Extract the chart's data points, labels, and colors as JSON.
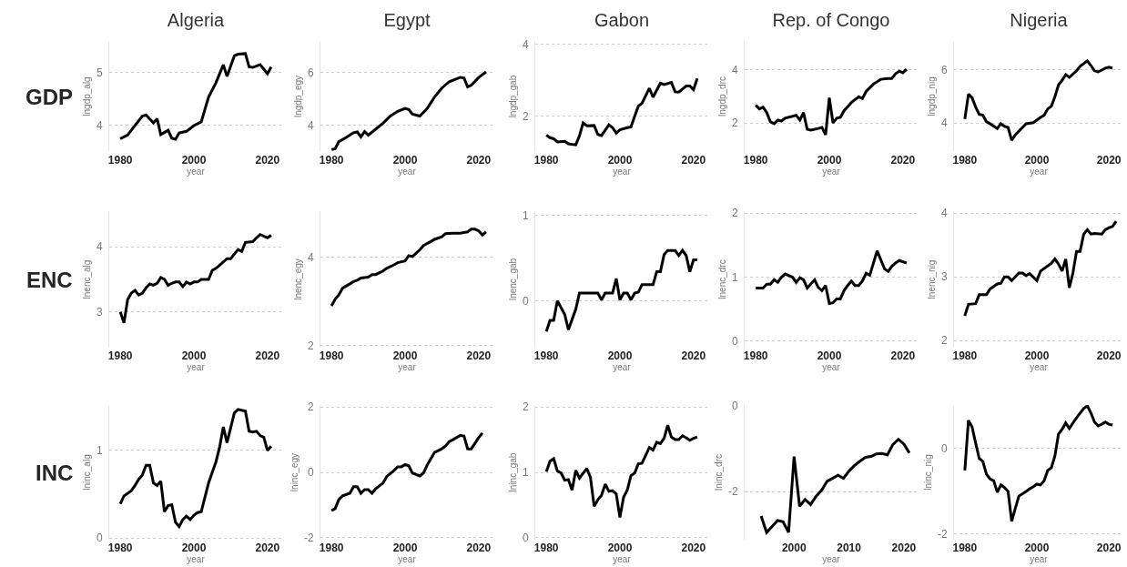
{
  "chart_data": [
    {
      "type": "line",
      "title": "Algeria",
      "annotations": [
        "GDP"
      ],
      "xlabel": "year",
      "ylabel": "lngdp_alg",
      "color": "#000000",
      "grid": "y",
      "xlim": [
        1977,
        2024
      ],
      "xticks": [
        1980,
        2000,
        2020
      ],
      "ylim": [
        3.5,
        5.6
      ],
      "yticks": [
        4,
        5
      ],
      "x": [
        1980,
        1982,
        1984,
        1986,
        1987,
        1989,
        1990,
        1991,
        1993,
        1994,
        1995,
        1996,
        1998,
        2000,
        2002,
        2004,
        2006,
        2008,
        2009,
        2011,
        2012,
        2014,
        2015,
        2016,
        2018,
        2020,
        2021
      ],
      "values": [
        3.75,
        3.82,
        4.0,
        4.18,
        4.2,
        4.05,
        4.13,
        3.83,
        3.91,
        3.76,
        3.74,
        3.86,
        3.89,
        4.0,
        4.07,
        4.54,
        4.81,
        5.15,
        4.93,
        5.32,
        5.35,
        5.36,
        5.11,
        5.1,
        5.15,
        4.98,
        5.11
      ]
    },
    {
      "type": "line",
      "title": "Egypt",
      "xlabel": "year",
      "ylabel": "lngdp_egy",
      "color": "#000000",
      "grid": "y",
      "xlim": [
        1977,
        2024
      ],
      "xticks": [
        1980,
        2000,
        2020
      ],
      "ylim": [
        3.0,
        7.2
      ],
      "yticks": [
        4,
        6
      ],
      "x": [
        1980,
        1981,
        1982,
        1984,
        1986,
        1987,
        1988,
        1989,
        1990,
        1992,
        1994,
        1996,
        1998,
        2000,
        2001,
        2002,
        2004,
        2006,
        2008,
        2010,
        2012,
        2014,
        2015,
        2016,
        2017,
        2018,
        2020,
        2022
      ],
      "values": [
        3.09,
        3.12,
        3.39,
        3.55,
        3.73,
        3.76,
        3.57,
        3.77,
        3.64,
        3.86,
        4.09,
        4.36,
        4.54,
        4.65,
        4.61,
        4.43,
        4.36,
        4.64,
        5.08,
        5.42,
        5.66,
        5.77,
        5.82,
        5.8,
        5.46,
        5.53,
        5.82,
        6.03
      ]
    },
    {
      "type": "line",
      "title": "Gabon",
      "xlabel": "year",
      "ylabel": "lngdp_gab",
      "color": "#000000",
      "grid": "y",
      "xlim": [
        1977,
        2024
      ],
      "xticks": [
        1980,
        2000,
        2020
      ],
      "ylim": [
        1.0,
        4.1
      ],
      "yticks": [
        2,
        4
      ],
      "x": [
        1980,
        1981,
        1982,
        1983,
        1985,
        1986,
        1988,
        1989,
        1990,
        1991,
        1993,
        1994,
        1995,
        1997,
        1998,
        1999,
        2000,
        2002,
        2003,
        2004,
        2005,
        2006,
        2008,
        2009,
        2011,
        2012,
        2014,
        2015,
        2016,
        2018,
        2019,
        2020,
        2021
      ],
      "values": [
        1.47,
        1.4,
        1.37,
        1.28,
        1.3,
        1.23,
        1.2,
        1.45,
        1.81,
        1.73,
        1.74,
        1.49,
        1.46,
        1.76,
        1.68,
        1.53,
        1.62,
        1.68,
        1.7,
        2.0,
        2.28,
        2.36,
        2.78,
        2.53,
        2.92,
        2.88,
        2.94,
        2.68,
        2.67,
        2.84,
        2.84,
        2.74,
        3.05
      ]
    },
    {
      "type": "line",
      "title": "Rep. of Congo",
      "xlabel": "year",
      "ylabel": "lngdp_drc",
      "color": "#000000",
      "grid": "y",
      "xlim": [
        1977,
        2024
      ],
      "xticks": [
        1980,
        2000,
        2020
      ],
      "ylim": [
        0.9,
        5.1
      ],
      "yticks": [
        2,
        4
      ],
      "x": [
        1980,
        1981,
        1982,
        1983,
        1984,
        1985,
        1986,
        1987,
        1988,
        1990,
        1991,
        1992,
        1993,
        1994,
        1995,
        1997,
        1998,
        1999,
        2000,
        2001,
        2002,
        2003,
        2004,
        2006,
        2008,
        2009,
        2010,
        2012,
        2014,
        2016,
        2017,
        2018,
        2019,
        2020,
        2021
      ],
      "values": [
        2.67,
        2.53,
        2.6,
        2.39,
        2.04,
        1.97,
        2.11,
        2.07,
        2.18,
        2.25,
        2.29,
        2.11,
        2.39,
        1.76,
        1.73,
        1.79,
        1.83,
        1.55,
        2.95,
        2.0,
        2.18,
        2.21,
        2.46,
        2.77,
        2.99,
        2.92,
        3.19,
        3.47,
        3.65,
        3.68,
        3.68,
        3.86,
        3.96,
        3.9,
        4.03
      ]
    },
    {
      "type": "line",
      "title": "Nigeria",
      "xlabel": "year",
      "ylabel": "lngdp_nig",
      "color": "#000000",
      "grid": "y",
      "xlim": [
        1977,
        2024
      ],
      "xticks": [
        1980,
        2000,
        2020
      ],
      "ylim": [
        2.9,
        7.1
      ],
      "yticks": [
        4,
        6
      ],
      "x": [
        1980,
        1981,
        1982,
        1983,
        1984,
        1985,
        1986,
        1987,
        1989,
        1990,
        1991,
        1992,
        1993,
        1994,
        1996,
        1997,
        1999,
        2001,
        2002,
        2003,
        2004,
        2005,
        2006,
        2007,
        2008,
        2009,
        2011,
        2012,
        2014,
        2015,
        2016,
        2017,
        2019,
        2020,
        2021
      ],
      "values": [
        4.15,
        5.09,
        4.95,
        4.6,
        4.32,
        4.29,
        4.04,
        3.97,
        3.79,
        3.97,
        3.87,
        3.83,
        3.34,
        3.55,
        3.83,
        3.97,
        4.01,
        4.21,
        4.29,
        4.53,
        4.63,
        4.99,
        5.44,
        5.61,
        5.83,
        5.72,
        5.97,
        6.14,
        6.35,
        6.17,
        5.97,
        5.93,
        6.07,
        6.11,
        6.07
      ]
    },
    {
      "type": "line",
      "annotations": [
        "ENC"
      ],
      "xlabel": "year",
      "ylabel": "lnenc_alg",
      "color": "#000000",
      "grid": "y",
      "xlim": [
        1977,
        2024
      ],
      "xticks": [
        1980,
        2000,
        2020
      ],
      "ylim": [
        2.45,
        4.55
      ],
      "yticks": [
        3,
        4
      ],
      "x": [
        1980,
        1981,
        1982,
        1983,
        1984,
        1985,
        1986,
        1987,
        1988,
        1989,
        1990,
        1991,
        1992,
        1993,
        1994,
        1995,
        1996,
        1997,
        1998,
        1999,
        2000,
        2001,
        2002,
        2004,
        2005,
        2006,
        2007,
        2009,
        2010,
        2012,
        2013,
        2014,
        2016,
        2017,
        2018,
        2020,
        2021
      ],
      "values": [
        3.0,
        2.83,
        3.19,
        3.29,
        3.33,
        3.26,
        3.29,
        3.37,
        3.43,
        3.41,
        3.44,
        3.53,
        3.5,
        3.41,
        3.44,
        3.46,
        3.46,
        3.39,
        3.46,
        3.43,
        3.46,
        3.46,
        3.5,
        3.5,
        3.64,
        3.67,
        3.72,
        3.82,
        3.82,
        3.96,
        3.93,
        4.07,
        4.08,
        4.14,
        4.19,
        4.14,
        4.18
      ]
    },
    {
      "type": "line",
      "xlabel": "year",
      "ylabel": "lnenc_egy",
      "color": "#000000",
      "grid": "y",
      "xlim": [
        1977,
        2024
      ],
      "xticks": [
        1980,
        2000,
        2020
      ],
      "ylim": [
        1.95,
        5.05
      ],
      "yticks": [
        2,
        4
      ],
      "x": [
        1980,
        1981,
        1982,
        1983,
        1985,
        1986,
        1987,
        1988,
        1990,
        1991,
        1992,
        1994,
        1995,
        1997,
        1998,
        2000,
        2001,
        2002,
        2004,
        2005,
        2007,
        2008,
        2010,
        2011,
        2013,
        2015,
        2017,
        2018,
        2019,
        2020,
        2021,
        2022
      ],
      "values": [
        2.9,
        3.05,
        3.15,
        3.3,
        3.4,
        3.45,
        3.48,
        3.53,
        3.55,
        3.61,
        3.61,
        3.69,
        3.75,
        3.83,
        3.88,
        3.92,
        4.04,
        4.02,
        4.17,
        4.27,
        4.36,
        4.41,
        4.47,
        4.54,
        4.55,
        4.55,
        4.58,
        4.64,
        4.64,
        4.6,
        4.51,
        4.58
      ]
    },
    {
      "type": "line",
      "xlabel": "year",
      "ylabel": "lnenc_gab",
      "color": "#000000",
      "grid": "y",
      "xlim": [
        1977,
        2024
      ],
      "xticks": [
        1980,
        2000,
        2020
      ],
      "ylim": [
        -0.55,
        1.05
      ],
      "yticks": [
        0,
        1
      ],
      "x": [
        1980,
        1981,
        1982,
        1983,
        1985,
        1986,
        1988,
        1989,
        1994,
        1995,
        1996,
        1998,
        1999,
        2000,
        2001,
        2002,
        2003,
        2004,
        2005,
        2006,
        2009,
        2010,
        2011,
        2012,
        2013,
        2015,
        2016,
        2017,
        2018,
        2019,
        2020,
        2021
      ],
      "values": [
        -0.36,
        -0.23,
        -0.23,
        0.0,
        -0.16,
        -0.34,
        -0.1,
        0.09,
        0.09,
        0.01,
        0.09,
        0.09,
        0.26,
        0.01,
        0.09,
        0.09,
        0.01,
        0.09,
        0.1,
        0.19,
        0.19,
        0.34,
        0.34,
        0.54,
        0.59,
        0.59,
        0.53,
        0.59,
        0.53,
        0.34,
        0.48,
        0.48
      ]
    },
    {
      "type": "line",
      "xlabel": "year",
      "ylabel": "lnenc_drc",
      "color": "#000000",
      "grid": "y",
      "xlim": [
        1977,
        2024
      ],
      "xticks": [
        1980,
        2000,
        2020
      ],
      "ylim": [
        -0.1,
        2.03
      ],
      "yticks": [
        0,
        1,
        2
      ],
      "x": [
        1980,
        1982,
        1983,
        1984,
        1985,
        1986,
        1987,
        1988,
        1990,
        1991,
        1992,
        1993,
        1994,
        1996,
        1997,
        1998,
        1999,
        2000,
        2001,
        2002,
        2003,
        2004,
        2005,
        2006,
        2007,
        2008,
        2009,
        2010,
        2011,
        2013,
        2015,
        2016,
        2017,
        2018,
        2019,
        2021
      ],
      "values": [
        0.83,
        0.83,
        0.89,
        0.89,
        0.96,
        0.92,
        1.0,
        1.05,
        1.0,
        0.92,
        0.99,
        0.96,
        0.83,
        0.96,
        0.84,
        0.79,
        0.87,
        0.59,
        0.6,
        0.66,
        0.66,
        0.79,
        0.87,
        0.94,
        0.87,
        0.87,
        0.94,
        1.06,
        1.03,
        1.41,
        1.13,
        1.09,
        1.17,
        1.22,
        1.26,
        1.22
      ]
    },
    {
      "type": "line",
      "xlabel": "year",
      "ylabel": "lnenc_nig",
      "color": "#000000",
      "grid": "y",
      "xlim": [
        1977,
        2024
      ],
      "xticks": [
        1980,
        2000,
        2020
      ],
      "ylim": [
        1.89,
        4.03
      ],
      "yticks": [
        2,
        3,
        4
      ],
      "x": [
        1980,
        1981,
        1983,
        1984,
        1986,
        1987,
        1989,
        1990,
        1991,
        1992,
        1993,
        1995,
        1996,
        1997,
        1998,
        2000,
        2001,
        2003,
        2004,
        2005,
        2006,
        2007,
        2008,
        2009,
        2010,
        2011,
        2012,
        2013,
        2014,
        2015,
        2016,
        2018,
        2019,
        2020,
        2021,
        2022
      ],
      "values": [
        2.39,
        2.57,
        2.58,
        2.72,
        2.72,
        2.81,
        2.89,
        2.9,
        3.0,
        3.0,
        2.94,
        3.06,
        3.06,
        3.02,
        3.05,
        2.94,
        3.09,
        3.17,
        3.21,
        3.28,
        3.2,
        3.09,
        3.28,
        2.83,
        3.06,
        3.4,
        3.4,
        3.67,
        3.74,
        3.67,
        3.68,
        3.67,
        3.74,
        3.77,
        3.79,
        3.87
      ]
    },
    {
      "type": "line",
      "annotations": [
        "INC"
      ],
      "xlabel": "year",
      "ylabel": "lninc_alg",
      "color": "#000000",
      "grid": "y",
      "xlim": [
        1977,
        2024
      ],
      "xticks": [
        1980,
        2000,
        2020
      ],
      "ylim": [
        -0.02,
        1.52
      ],
      "yticks": [
        0,
        1
      ],
      "x": [
        1980,
        1981,
        1983,
        1984,
        1985,
        1986,
        1987,
        1988,
        1989,
        1990,
        1991,
        1992,
        1993,
        1994,
        1995,
        1996,
        1997,
        1998,
        1999,
        2000,
        2001,
        2002,
        2004,
        2006,
        2007,
        2008,
        2009,
        2011,
        2012,
        2014,
        2015,
        2016,
        2017,
        2018,
        2019,
        2020,
        2021
      ],
      "values": [
        0.39,
        0.48,
        0.54,
        0.6,
        0.67,
        0.72,
        0.83,
        0.83,
        0.63,
        0.6,
        0.65,
        0.3,
        0.37,
        0.38,
        0.18,
        0.13,
        0.21,
        0.25,
        0.21,
        0.26,
        0.29,
        0.3,
        0.63,
        0.87,
        1.04,
        1.27,
        1.09,
        1.43,
        1.47,
        1.45,
        1.22,
        1.21,
        1.22,
        1.17,
        1.15,
        1.0,
        1.05
      ]
    },
    {
      "type": "line",
      "xlabel": "year",
      "ylabel": "lninc_egy",
      "color": "#000000",
      "grid": "y",
      "xlim": [
        1977,
        2024
      ],
      "xticks": [
        1980,
        2000,
        2020
      ],
      "ylim": [
        -2.06,
        2.06
      ],
      "yticks": [
        -2,
        0,
        2
      ],
      "x": [
        1980,
        1981,
        1982,
        1983,
        1985,
        1986,
        1987,
        1988,
        1989,
        1990,
        1991,
        1992,
        1994,
        1995,
        1997,
        1998,
        1999,
        2000,
        2001,
        2002,
        2004,
        2005,
        2006,
        2008,
        2010,
        2011,
        2012,
        2013,
        2015,
        2016,
        2017,
        2018,
        2020,
        2021
      ],
      "values": [
        -1.17,
        -1.11,
        -0.83,
        -0.72,
        -0.64,
        -0.44,
        -0.44,
        -0.64,
        -0.53,
        -0.53,
        -0.64,
        -0.5,
        -0.33,
        -0.13,
        0.06,
        0.17,
        0.17,
        0.24,
        0.2,
        -0.02,
        -0.11,
        -0.02,
        0.22,
        0.61,
        0.72,
        0.81,
        0.94,
        1.0,
        1.13,
        1.11,
        0.72,
        0.72,
        1.06,
        1.2
      ]
    },
    {
      "type": "line",
      "xlabel": "year",
      "ylabel": "lninc_gab",
      "color": "#000000",
      "grid": "y",
      "xlim": [
        1977,
        2024
      ],
      "xticks": [
        1980,
        2000,
        2020
      ],
      "ylim": [
        -0.03,
        2.03
      ],
      "yticks": [
        0,
        1,
        2
      ],
      "x": [
        1980,
        1981,
        1982,
        1983,
        1984,
        1985,
        1986,
        1987,
        1988,
        1989,
        1991,
        1992,
        1993,
        1994,
        1995,
        1996,
        1997,
        1998,
        1999,
        2000,
        2001,
        2002,
        2003,
        2004,
        2005,
        2006,
        2008,
        2009,
        2010,
        2011,
        2012,
        2013,
        2014,
        2015,
        2016,
        2017,
        2018,
        2019,
        2020,
        2021
      ],
      "values": [
        1.01,
        1.17,
        1.21,
        1.02,
        0.99,
        0.88,
        0.89,
        0.73,
        1.03,
        0.91,
        1.06,
        0.92,
        0.48,
        0.58,
        0.65,
        0.82,
        0.71,
        0.72,
        0.67,
        0.31,
        0.62,
        0.73,
        0.95,
        0.99,
        1.13,
        1.14,
        1.38,
        1.34,
        1.46,
        1.44,
        1.52,
        1.72,
        1.54,
        1.5,
        1.5,
        1.56,
        1.53,
        1.49,
        1.52,
        1.54
      ]
    },
    {
      "type": "line",
      "xlabel": "year",
      "ylabel": "lninc_drc",
      "color": "#000000",
      "grid": "y",
      "xlim": [
        1991,
        2022.5
      ],
      "xticks": [
        2000,
        2010,
        2020
      ],
      "ylim": [
        -3.12,
        0.02
      ],
      "yticks": [
        -2,
        0
      ],
      "x": [
        1994,
        1995,
        1996,
        1997,
        1998,
        1999,
        2000,
        2001,
        2002,
        2003,
        2004,
        2005,
        2006,
        2007,
        2008,
        2009,
        2010,
        2011,
        2012,
        2013,
        2014,
        2015,
        2016,
        2017,
        2018,
        2019,
        2020,
        2021
      ],
      "values": [
        -2.57,
        -2.95,
        -2.81,
        -2.67,
        -2.7,
        -2.95,
        -1.18,
        -2.34,
        -2.18,
        -2.3,
        -2.11,
        -1.97,
        -1.76,
        -1.69,
        -1.62,
        -1.69,
        -1.52,
        -1.39,
        -1.29,
        -1.2,
        -1.18,
        -1.12,
        -1.11,
        -1.14,
        -0.9,
        -0.78,
        -0.89,
        -1.1
      ]
    },
    {
      "type": "line",
      "xlabel": "year",
      "ylabel": "lninc_nig",
      "color": "#000000",
      "grid": "y",
      "xlim": [
        1977,
        2024
      ],
      "xticks": [
        1980,
        2000,
        2020
      ],
      "ylim": [
        -2.13,
        1.02
      ],
      "yticks": [
        -2,
        0
      ],
      "x": [
        1980,
        1981,
        1982,
        1983,
        1984,
        1985,
        1986,
        1987,
        1988,
        1989,
        1990,
        1991,
        1992,
        1993,
        1994,
        1995,
        1997,
        1998,
        1999,
        2000,
        2001,
        2002,
        2003,
        2004,
        2005,
        2006,
        2007,
        2008,
        2009,
        2010,
        2011,
        2012,
        2013,
        2014,
        2015,
        2016,
        2017,
        2018,
        2019,
        2020,
        2021
      ],
      "values": [
        -0.51,
        0.66,
        0.51,
        0.13,
        -0.23,
        -0.3,
        -0.6,
        -0.71,
        -0.75,
        -1.02,
        -0.85,
        -0.91,
        -1.0,
        -1.7,
        -1.4,
        -1.11,
        -1.0,
        -0.94,
        -0.89,
        -0.83,
        -0.85,
        -0.75,
        -0.51,
        -0.45,
        -0.17,
        0.34,
        0.45,
        0.6,
        0.47,
        0.6,
        0.72,
        0.83,
        0.94,
        1.0,
        0.83,
        0.62,
        0.53,
        0.57,
        0.62,
        0.57,
        0.55
      ]
    }
  ]
}
